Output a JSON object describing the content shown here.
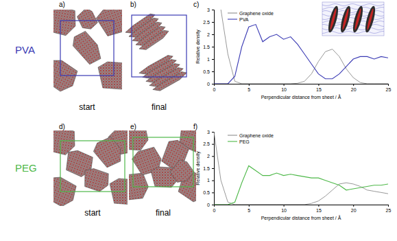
{
  "figure": {
    "rows": [
      {
        "label": "PVA",
        "color": "#3a3ab4",
        "panels": [
          "a)",
          "b)",
          "c)"
        ],
        "captions": [
          "start",
          "final"
        ]
      },
      {
        "label": "PEG",
        "color": "#4db848",
        "panels": [
          "d)",
          "e)",
          "f)"
        ],
        "captions": [
          "start",
          "final"
        ]
      }
    ]
  },
  "chart_data": [
    {
      "type": "line",
      "x_label": "Perpendicular distance from sheet / Å",
      "y_label": "Relative density",
      "x": [
        0,
        1,
        2,
        3,
        4,
        5,
        6,
        7,
        8,
        9,
        10,
        11,
        12,
        13,
        14,
        15,
        16,
        17,
        18,
        19,
        20,
        21,
        22,
        23,
        24,
        25
      ],
      "xlim": [
        0,
        25
      ],
      "xticks": [
        0,
        5,
        10,
        15,
        20,
        25
      ],
      "ylim": [
        0,
        3
      ],
      "yticks": [
        0,
        0.5,
        1,
        1.5,
        2,
        2.5,
        3
      ],
      "legend": "upper left",
      "series": [
        {
          "name": "Graphene oxide",
          "color": "#8c8c8c",
          "values": [
            null,
            3.0,
            1.2,
            0.1,
            0,
            0,
            0,
            0,
            0,
            0,
            0,
            0,
            0.02,
            0.1,
            0.4,
            0.9,
            1.3,
            1.4,
            1.1,
            0.6,
            0.25,
            0.05,
            0,
            0,
            0,
            0
          ]
        },
        {
          "name": "PVA",
          "color": "#3a3ab4",
          "values": [
            0,
            0,
            0,
            0.3,
            1.5,
            2.3,
            2.4,
            1.7,
            1.9,
            2.0,
            1.8,
            1.9,
            1.6,
            1.2,
            0.8,
            0.4,
            0.2,
            0.2,
            0.4,
            0.7,
            1.0,
            1.1,
            1.1,
            1.0,
            1.1,
            1.05
          ]
        }
      ]
    },
    {
      "type": "line",
      "x_label": "Perpendicular distance from sheet / Å",
      "y_label": "Relative density",
      "x": [
        0,
        1,
        2,
        3,
        4,
        5,
        6,
        7,
        8,
        9,
        10,
        11,
        12,
        13,
        14,
        15,
        16,
        17,
        18,
        19,
        20,
        21,
        22,
        23,
        24,
        25
      ],
      "xlim": [
        0,
        25
      ],
      "xticks": [
        0,
        5,
        10,
        15,
        20,
        25
      ],
      "ylim": [
        0,
        3
      ],
      "yticks": [
        0,
        0.5,
        1,
        1.5,
        2,
        2.5,
        3
      ],
      "legend": "upper left",
      "series": [
        {
          "name": "Graphene oxide",
          "color": "#8c8c8c",
          "values": [
            3.0,
            1.0,
            0.1,
            0,
            0,
            0,
            0,
            0,
            0,
            0,
            0,
            0,
            0,
            0,
            0.05,
            0.15,
            0.35,
            0.6,
            0.85,
            0.9,
            0.85,
            0.75,
            0.6,
            0.55,
            0.5,
            0.45
          ]
        },
        {
          "name": "PEG",
          "color": "#4db848",
          "values": [
            0,
            0,
            0,
            0.1,
            0.9,
            1.6,
            1.4,
            1.2,
            1.2,
            1.3,
            1.2,
            1.25,
            1.2,
            1.15,
            1.1,
            1.1,
            1.0,
            0.9,
            0.8,
            0.6,
            0.65,
            0.7,
            0.75,
            0.8,
            0.8,
            0.85
          ]
        }
      ]
    }
  ]
}
